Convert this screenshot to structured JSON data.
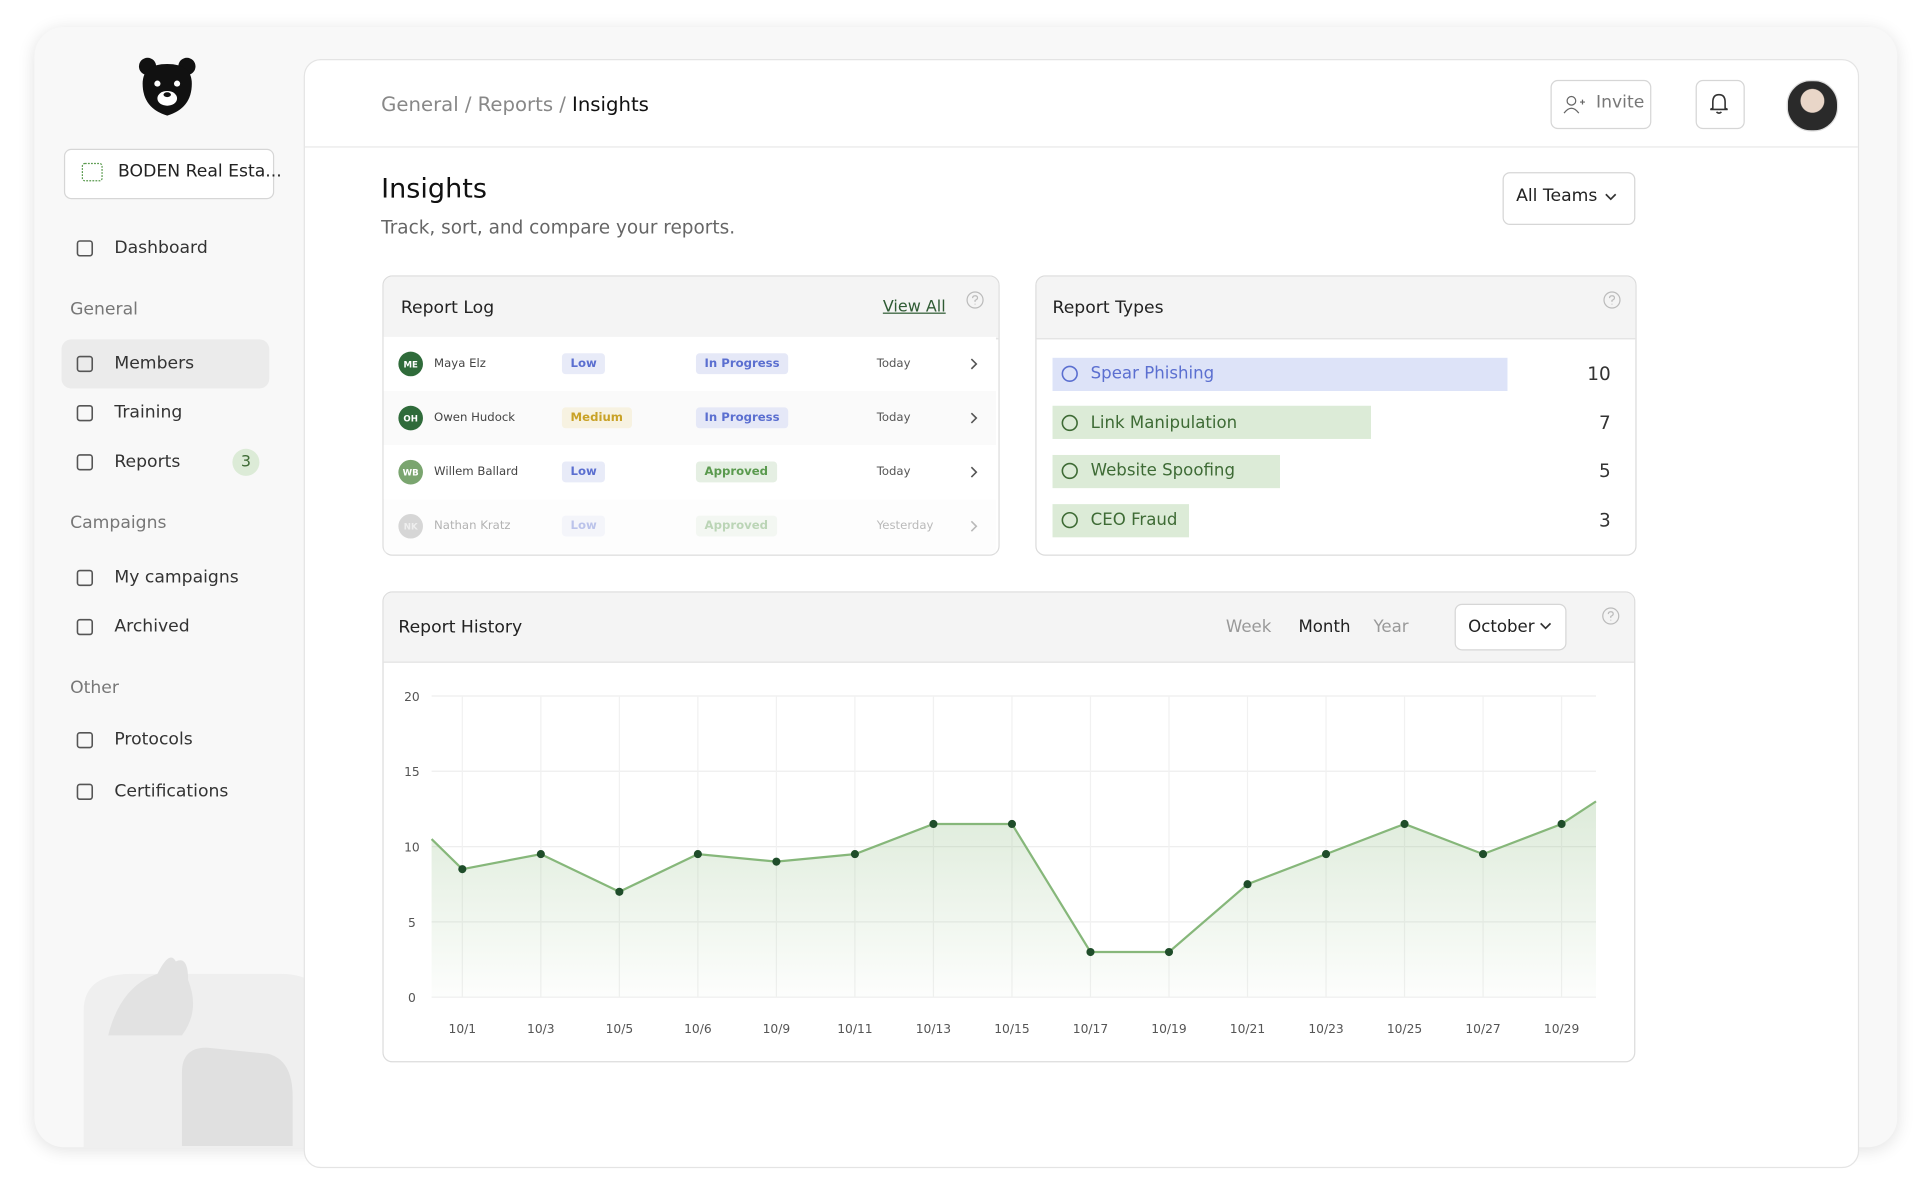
{
  "sidebar": {
    "org": "BODEN Real Esta...",
    "top": [
      {
        "label": "Dashboard"
      }
    ],
    "sections": [
      {
        "title": "General",
        "items": [
          {
            "label": "Members",
            "active": true
          },
          {
            "label": "Training"
          },
          {
            "label": "Reports",
            "badge": 3
          }
        ]
      },
      {
        "title": "Campaigns",
        "items": [
          {
            "label": "My campaigns"
          },
          {
            "label": "Archived"
          }
        ]
      },
      {
        "title": "Other",
        "items": [
          {
            "label": "Protocols"
          },
          {
            "label": "Certifications"
          }
        ]
      }
    ]
  },
  "breadcrumb": {
    "items": [
      "General",
      "Reports",
      "Insights"
    ],
    "separator": "/"
  },
  "header": {
    "invite": "Invite"
  },
  "page": {
    "title": "Insights",
    "subtitle": "Track, sort, and compare your reports.",
    "team_filter": "All Teams"
  },
  "report_log": {
    "title": "Report Log",
    "view_all": "View All",
    "rows": [
      {
        "initials": "ME",
        "name": "Maya Elz",
        "severity": "Low",
        "severity_color": "#5b6fd0",
        "status": "In Progress",
        "status_color": "#5b6fd0",
        "date": "Today",
        "avatar_color": "#2f6b3a"
      },
      {
        "initials": "OH",
        "name": "Owen Hudock",
        "severity": "Medium",
        "severity_color": "#c9a227",
        "status": "In Progress",
        "status_color": "#5b6fd0",
        "date": "Today",
        "avatar_color": "#2f6b3a"
      },
      {
        "initials": "WB",
        "name": "Willem Ballard",
        "severity": "Low",
        "severity_color": "#5b6fd0",
        "status": "Approved",
        "status_color": "#5a9a4e",
        "date": "Today",
        "avatar_color": "#7aa56f"
      },
      {
        "initials": "NK",
        "name": "Nathan Kratz",
        "severity": "Low",
        "severity_color": "#5b6fd0",
        "status": "Approved",
        "status_color": "#5a9a4e",
        "date": "Yesterday",
        "avatar_color": "#9a9a9a",
        "faded": true
      }
    ]
  },
  "report_types": {
    "title": "Report Types",
    "items": [
      {
        "name": "Spear Phishing",
        "count": 10,
        "color": "#dde3f8",
        "text_color": "#5b6fd0"
      },
      {
        "name": "Link Manipulation",
        "count": 7,
        "color": "#dcebd7",
        "text_color": "#3e6b35"
      },
      {
        "name": "Website Spoofing",
        "count": 5,
        "color": "#dcebd7",
        "text_color": "#3e6b35"
      },
      {
        "name": "CEO Fraud",
        "count": 3,
        "color": "#dcebd7",
        "text_color": "#3e6b35"
      }
    ]
  },
  "report_history": {
    "title": "Report History",
    "periods": [
      "Week",
      "Month",
      "Year"
    ],
    "active_period": 1,
    "month": "October"
  },
  "chart_data": {
    "type": "line",
    "categories": [
      null,
      "10/1",
      "10/3",
      "10/5",
      "10/6",
      "10/9",
      "10/11",
      "10/13",
      "10/15",
      "10/17",
      "10/19",
      "10/21",
      "10/23",
      "10/25",
      "10/27",
      "10/29",
      null
    ],
    "values": [
      10.5,
      8.5,
      9.5,
      7,
      9.5,
      9,
      9.5,
      11.5,
      11.5,
      3,
      3,
      7.5,
      9.5,
      11.5,
      9.5,
      11.5,
      13
    ],
    "color": "#86b77a",
    "point_color": "#1f4d2a",
    "ylim": [
      0,
      20
    ],
    "yticks": [
      0,
      5,
      10,
      15,
      20
    ],
    "grid": true
  }
}
